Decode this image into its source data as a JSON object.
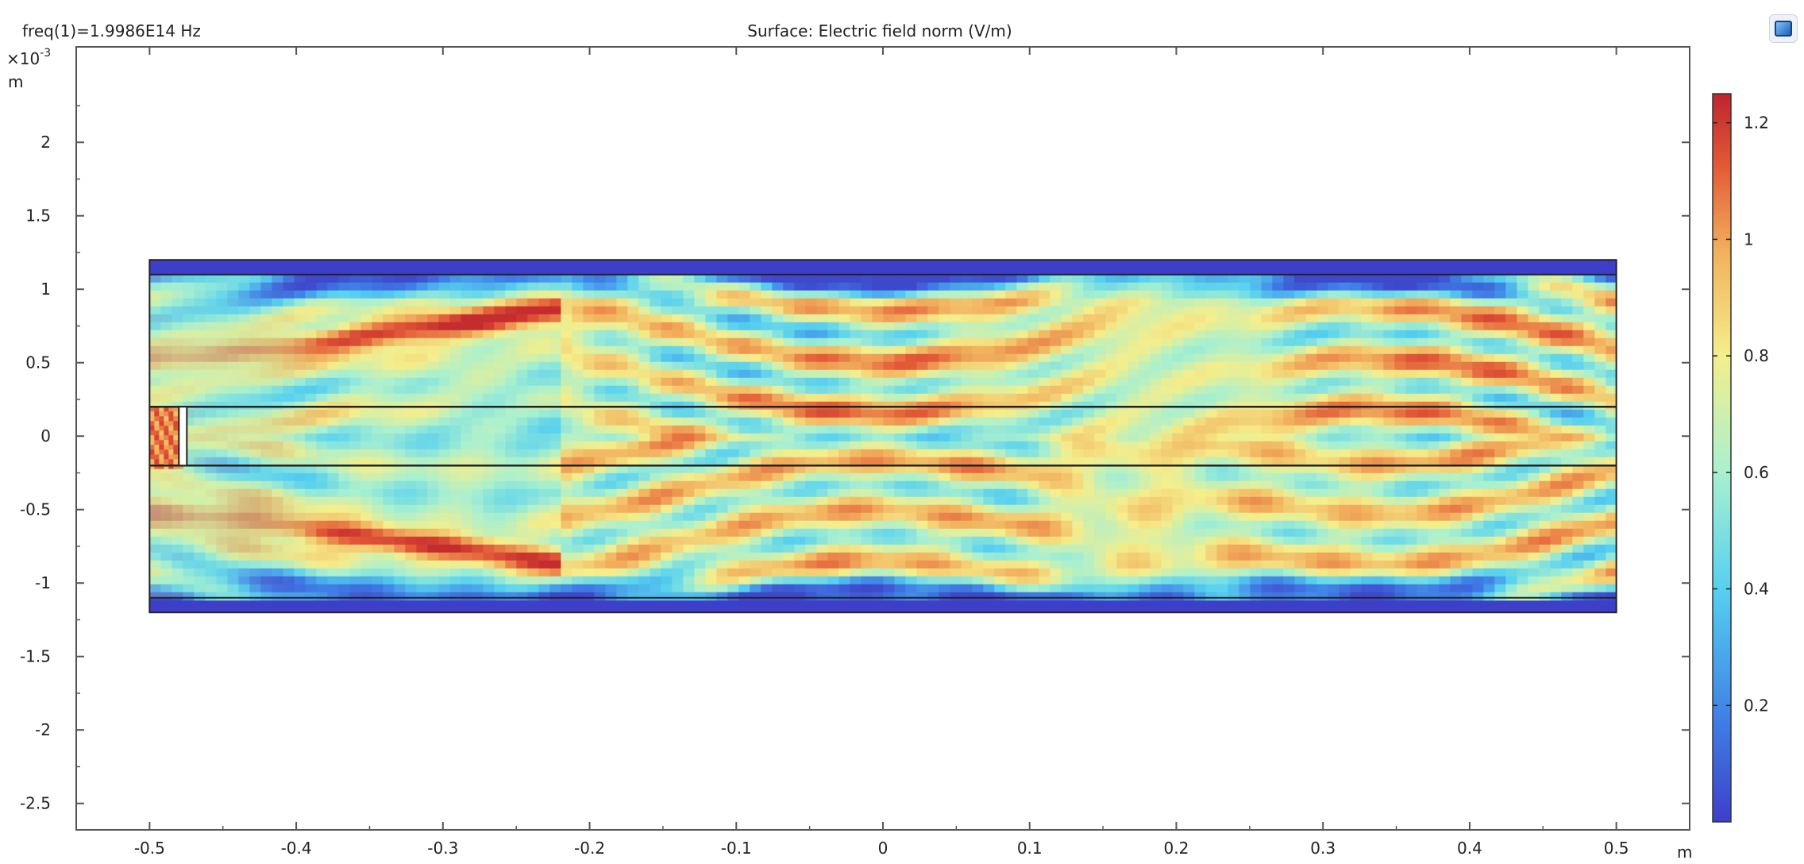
{
  "header": {
    "left_text": "freq(1)=1.9986E14 Hz",
    "center_text": "Surface: Electric field norm (V/m)"
  },
  "chart_data": {
    "type": "heatmap",
    "title": "Surface: Electric field norm (V/m)",
    "subtitle": "freq(1)=1.9986E14 Hz",
    "xlabel": "m",
    "ylabel": "m",
    "y_exponent_label": "×10",
    "y_exponent_power": "-3",
    "x_ticks": [
      -0.5,
      -0.4,
      -0.3,
      -0.2,
      -0.1,
      0,
      0.1,
      0.2,
      0.3,
      0.4,
      0.5
    ],
    "x_tick_labels": [
      "-0.5",
      "-0.4",
      "-0.3",
      "-0.2",
      "-0.1",
      "0",
      "0.1",
      "0.2",
      "0.3",
      "0.4",
      "0.5"
    ],
    "y_ticks": [
      2,
      1.5,
      1,
      0.5,
      0,
      -0.5,
      -1,
      -1.5,
      -2,
      -2.5
    ],
    "y_tick_labels": [
      "2",
      "1.5",
      "1",
      "0.5",
      "0",
      "-0.5",
      "-1",
      "-1.5",
      "-2",
      "-2.5"
    ],
    "xlim": [
      -0.55,
      0.55
    ],
    "ylim": [
      -2.68,
      2.65
    ],
    "domain": {
      "x_range": [
        -0.5,
        0.5
      ],
      "outer_y": [
        -1.2,
        1.2
      ],
      "cladding_y": [
        -1.1,
        1.1
      ],
      "core_y": [
        -0.2,
        0.2
      ],
      "source_x_range": [
        -0.5,
        -0.48
      ]
    },
    "colorbar": {
      "ticks": [
        1.2,
        1,
        0.8,
        0.6,
        0.4,
        0.2
      ],
      "tick_labels": [
        "1.2",
        "1",
        "0.8",
        "0.6",
        "0.4",
        "0.2"
      ],
      "range": [
        0,
        1.25
      ],
      "colormap": "rainbow",
      "colors": [
        "#3e3fc9",
        "#3f7fe6",
        "#56d0f0",
        "#a9f0cf",
        "#f4ee8c",
        "#f2b25e",
        "#e35a37",
        "#c0242e"
      ]
    },
    "grid": false
  },
  "icons": {
    "corner": "graphics-window-icon"
  }
}
